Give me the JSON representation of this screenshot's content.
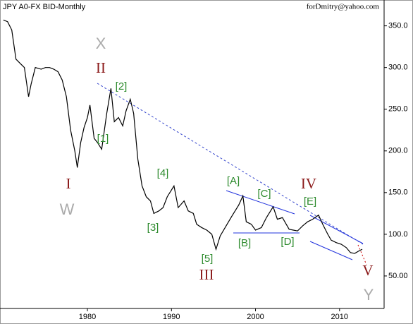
{
  "chart_data": {
    "type": "line",
    "title": "JPY A0-FX BID-Monthly",
    "subtitle": "forDmitry@yahoo.com",
    "color": "#000000",
    "x": [
      1970.0,
      1970.5,
      1971.0,
      1971.5,
      1972.0,
      1972.5,
      1973.0,
      1973.3,
      1973.8,
      1974.5,
      1975.0,
      1975.5,
      1976.0,
      1976.5,
      1977.0,
      1977.5,
      1978.0,
      1978.5,
      1978.8,
      1979.2,
      1979.6,
      1980.0,
      1980.3,
      1980.8,
      1981.2,
      1981.7,
      1982.3,
      1982.8,
      1983.2,
      1983.7,
      1984.2,
      1984.6,
      1985.1,
      1985.5,
      1986.0,
      1986.5,
      1987.0,
      1987.5,
      1987.9,
      1988.5,
      1989.0,
      1989.5,
      1990.3,
      1990.8,
      1991.5,
      1992.0,
      1992.6,
      1993.0,
      1993.6,
      1994.2,
      1994.8,
      1995.3,
      1995.8,
      1996.5,
      1997.2,
      1998.0,
      1998.5,
      1998.9,
      1999.5,
      2000.0,
      2000.7,
      2001.3,
      2002.1,
      2002.6,
      2003.2,
      2004.0,
      2004.5,
      2005.0,
      2005.6,
      2006.2,
      2006.8,
      2007.5,
      2008.0,
      2008.6,
      2009.0,
      2009.6,
      2010.2,
      2010.8,
      2011.3,
      2011.8,
      2012.3,
      2012.7
    ],
    "values": [
      357,
      355,
      345,
      310,
      305,
      300,
      265,
      280,
      300,
      298,
      300,
      300,
      298,
      295,
      285,
      265,
      225,
      200,
      180,
      210,
      228,
      240,
      255,
      215,
      210,
      202,
      245,
      275,
      235,
      240,
      230,
      248,
      262,
      245,
      190,
      158,
      145,
      140,
      125,
      128,
      132,
      145,
      158,
      132,
      140,
      128,
      125,
      112,
      108,
      105,
      100,
      82,
      98,
      110,
      122,
      135,
      146,
      115,
      112,
      105,
      108,
      120,
      133,
      118,
      120,
      106,
      105,
      104,
      110,
      115,
      118,
      123,
      112,
      100,
      93,
      90,
      88,
      84,
      78,
      77,
      80,
      82
    ],
    "xlim": [
      1969.6,
      2015.3
    ],
    "ylim": [
      11,
      381
    ],
    "xticks": [
      1980,
      1990,
      2000,
      2010
    ],
    "yticks": [
      {
        "value": 50,
        "label": "50.00"
      },
      {
        "value": 100,
        "label": "100.0"
      },
      {
        "value": 150,
        "label": "150.0"
      },
      {
        "value": 200,
        "label": "200.0"
      },
      {
        "value": 250,
        "label": "250.0"
      },
      {
        "value": 300,
        "label": "300.0"
      },
      {
        "value": 350,
        "label": "350.0"
      }
    ],
    "annotations": [
      "X",
      "II",
      "[2]",
      "[1]",
      "I",
      "W",
      "[4]",
      "[3]",
      "[5]",
      "III",
      "[A]",
      "[B]",
      "[C]",
      "[D]",
      "IV",
      "[E]",
      "V",
      "Y"
    ]
  }
}
